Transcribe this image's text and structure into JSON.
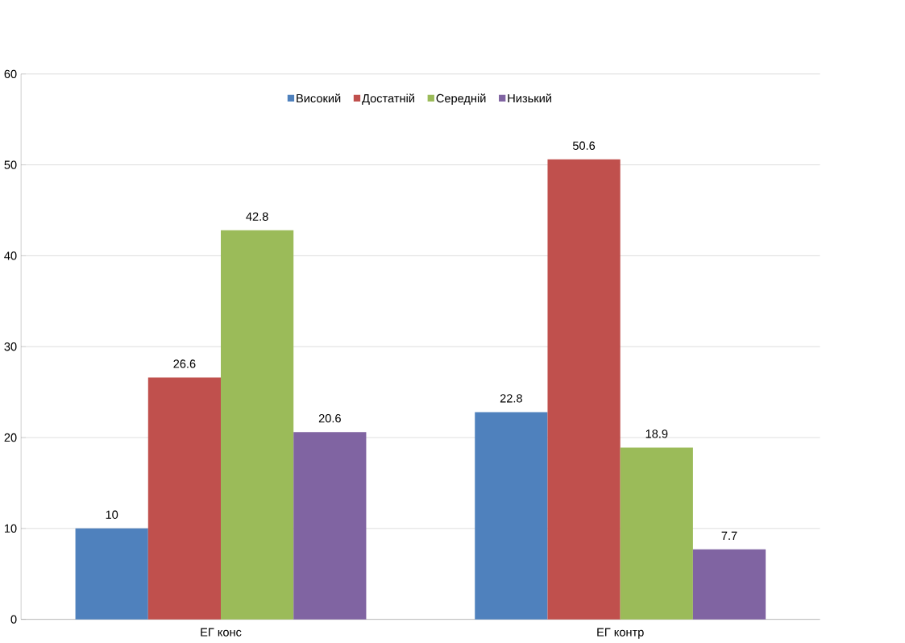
{
  "chart_data": {
    "type": "bar",
    "categories": [
      "ЕГ конс",
      "ЕГ контр"
    ],
    "series": [
      {
        "name": "Високий",
        "color": "#4f81bd",
        "values": [
          10,
          22.8
        ]
      },
      {
        "name": "Достатній",
        "color": "#c0504d",
        "values": [
          26.6,
          50.6
        ]
      },
      {
        "name": "Середній",
        "color": "#9bbb59",
        "values": [
          42.8,
          18.9
        ]
      },
      {
        "name": "Низький",
        "color": "#8064a2",
        "values": [
          20.6,
          7.7
        ]
      }
    ],
    "ylim": [
      0,
      60
    ],
    "yticks": [
      0,
      10,
      20,
      30,
      40,
      50,
      60
    ],
    "grid": "y",
    "legend": "top",
    "data_labels": true
  }
}
